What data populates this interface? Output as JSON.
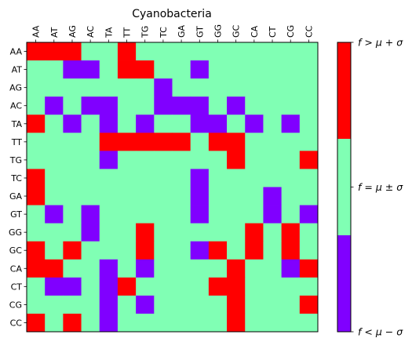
{
  "chart_data": {
    "type": "heatmap",
    "title": "Cyanobacteria",
    "x_labels": [
      "AA",
      "AT",
      "AG",
      "AC",
      "TA",
      "TT",
      "TG",
      "TC",
      "GA",
      "GT",
      "GG",
      "GC",
      "CA",
      "CT",
      "CG",
      "CC"
    ],
    "y_labels": [
      "AA",
      "AT",
      "AG",
      "AC",
      "TA",
      "TT",
      "TG",
      "TC",
      "GA",
      "GT",
      "GG",
      "GC",
      "CA",
      "CT",
      "CG",
      "CC"
    ],
    "x_tick_position": "top",
    "value_encoding": {
      "-1": "f < mu - sigma",
      "0": "f = mu ± sigma",
      "1": "f > mu + sigma"
    },
    "colors": {
      "low": "#8000ff",
      "mid": "#80ffb4",
      "high": "#ff0000"
    },
    "colorbar": {
      "labels": [
        "f > μ + σ",
        "f = μ ± σ",
        "f < μ − σ"
      ]
    },
    "values": [
      [
        1,
        1,
        1,
        0,
        0,
        1,
        0,
        0,
        0,
        0,
        0,
        0,
        0,
        0,
        0,
        0
      ],
      [
        0,
        0,
        -1,
        -1,
        0,
        1,
        1,
        0,
        0,
        -1,
        0,
        0,
        0,
        0,
        0,
        0
      ],
      [
        0,
        0,
        0,
        0,
        0,
        0,
        0,
        -1,
        0,
        0,
        0,
        0,
        0,
        0,
        0,
        0
      ],
      [
        0,
        -1,
        0,
        -1,
        -1,
        0,
        0,
        -1,
        -1,
        -1,
        0,
        -1,
        0,
        0,
        0,
        0
      ],
      [
        1,
        0,
        -1,
        0,
        -1,
        0,
        -1,
        0,
        0,
        -1,
        -1,
        0,
        -1,
        0,
        -1,
        0
      ],
      [
        0,
        0,
        0,
        0,
        1,
        1,
        1,
        1,
        1,
        0,
        1,
        1,
        0,
        0,
        0,
        0
      ],
      [
        0,
        0,
        0,
        0,
        -1,
        0,
        0,
        0,
        0,
        0,
        0,
        1,
        0,
        0,
        0,
        1
      ],
      [
        1,
        0,
        0,
        0,
        0,
        0,
        0,
        0,
        0,
        -1,
        0,
        0,
        0,
        0,
        0,
        0
      ],
      [
        1,
        0,
        0,
        0,
        0,
        0,
        0,
        0,
        0,
        -1,
        0,
        0,
        0,
        -1,
        0,
        0
      ],
      [
        0,
        -1,
        0,
        -1,
        0,
        0,
        0,
        0,
        0,
        -1,
        0,
        0,
        0,
        -1,
        0,
        -1
      ],
      [
        0,
        0,
        0,
        -1,
        0,
        0,
        1,
        0,
        0,
        0,
        0,
        0,
        1,
        0,
        1,
        0
      ],
      [
        1,
        0,
        1,
        0,
        0,
        0,
        1,
        0,
        0,
        -1,
        1,
        0,
        1,
        0,
        1,
        0
      ],
      [
        1,
        1,
        0,
        0,
        -1,
        0,
        -1,
        0,
        0,
        0,
        0,
        1,
        0,
        0,
        -1,
        1
      ],
      [
        0,
        -1,
        -1,
        0,
        -1,
        1,
        0,
        0,
        0,
        0,
        1,
        1,
        0,
        0,
        0,
        0
      ],
      [
        0,
        0,
        0,
        0,
        -1,
        0,
        -1,
        0,
        0,
        0,
        0,
        1,
        0,
        0,
        0,
        1
      ],
      [
        1,
        0,
        1,
        0,
        -1,
        0,
        0,
        0,
        0,
        0,
        0,
        1,
        0,
        0,
        0,
        0
      ]
    ]
  }
}
